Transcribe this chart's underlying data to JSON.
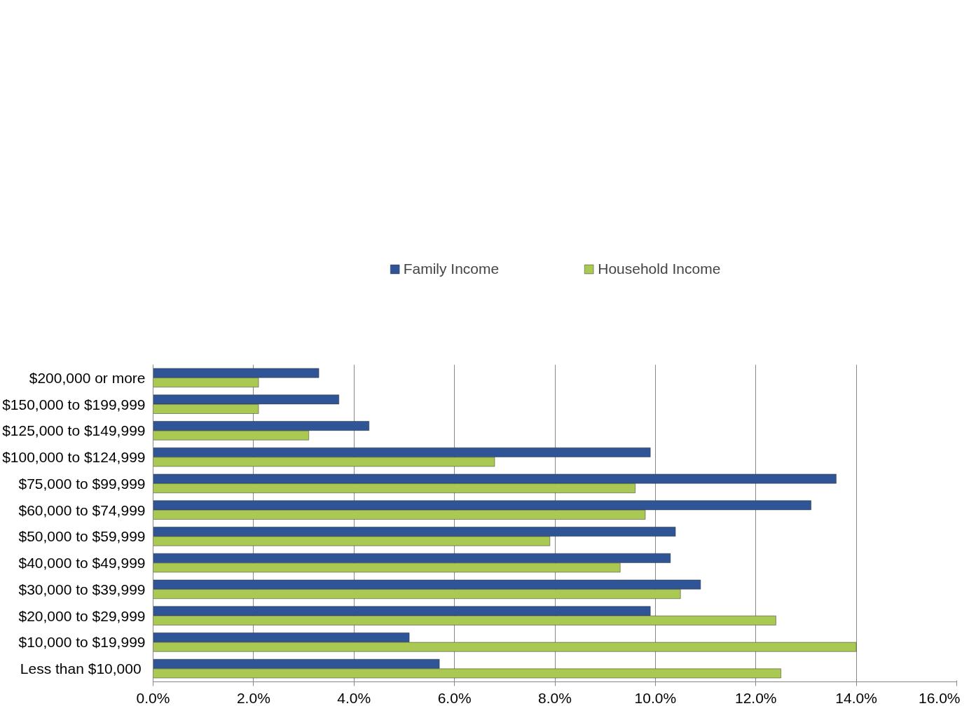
{
  "chart_data": {
    "type": "bar",
    "orientation": "horizontal",
    "categories": [
      "$200,000 or more",
      "$150,000 to $199,999",
      "$125,000 to $149,999",
      "$100,000 to $124,999",
      "$75,000 to $99,999",
      "$60,000 to $74,999",
      "$50,000 to $59,999",
      "$40,000 to $49,999",
      "$30,000 to $39,999",
      "$20,000 to $29,999",
      "$10,000 to $19,999",
      "Less than  $10,000"
    ],
    "series": [
      {
        "name": "Family Income",
        "color": "#2f5597",
        "values": [
          3.3,
          3.7,
          4.3,
          9.9,
          13.6,
          13.1,
          10.4,
          10.3,
          10.9,
          9.9,
          5.1,
          5.7
        ]
      },
      {
        "name": "Household Income",
        "color": "#a9c953",
        "values": [
          2.1,
          2.1,
          3.1,
          6.8,
          9.6,
          9.8,
          7.9,
          9.3,
          10.5,
          12.4,
          14.0,
          12.5
        ]
      }
    ],
    "xlim": [
      0,
      16
    ],
    "xticks": [
      {
        "value": 0,
        "label": "0.0%"
      },
      {
        "value": 2,
        "label": "2.0%"
      },
      {
        "value": 4,
        "label": "4.0%"
      },
      {
        "value": 6,
        "label": "6.0%"
      },
      {
        "value": 8,
        "label": "8.0%"
      },
      {
        "value": 10,
        "label": "10.0%"
      },
      {
        "value": 12,
        "label": "12.0%"
      },
      {
        "value": 14,
        "label": "14.0%"
      },
      {
        "value": 16,
        "label": "16.0%"
      }
    ],
    "grid": "x",
    "legend": "top"
  }
}
